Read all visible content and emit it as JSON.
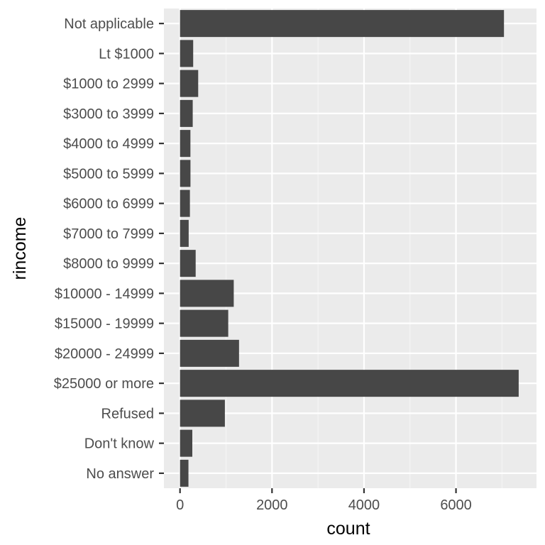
{
  "chart_data": {
    "type": "bar",
    "orientation": "horizontal",
    "title": "",
    "xlabel": "count",
    "ylabel": "rincome",
    "categories": [
      "Not applicable",
      "Lt $1000",
      "$1000 to 2999",
      "$3000 to 3999",
      "$4000 to 4999",
      "$5000 to 5999",
      "$6000 to 6999",
      "$7000 to 7999",
      "$8000 to 9999",
      "$10000 - 14999",
      "$15000 - 19999",
      "$20000 - 24999",
      "$25000 or more",
      "Refused",
      "Don't know",
      "No answer"
    ],
    "values": [
      7043,
      286,
      395,
      276,
      226,
      227,
      215,
      188,
      340,
      1168,
      1048,
      1283,
      7363,
      975,
      267,
      183
    ],
    "xlim": [
      -350,
      7750
    ],
    "xticks": [
      0,
      2000,
      4000,
      6000
    ],
    "xtick_labels": [
      "0",
      "2000",
      "4000",
      "6000"
    ],
    "grid": true,
    "colors": {
      "bar": "#474747",
      "panel_background": "#ebebeb",
      "grid_major": "#ffffff",
      "grid_minor": "#f5f5f5",
      "tick": "#333333"
    }
  }
}
